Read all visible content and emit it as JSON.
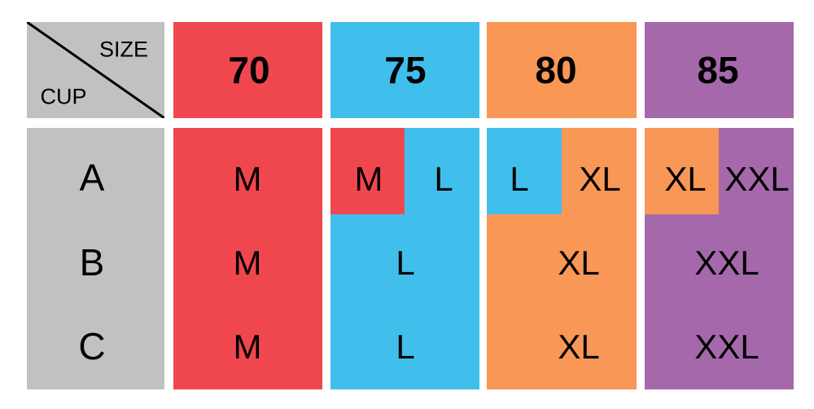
{
  "colors": {
    "gray": "#c1c1c3",
    "red": "#f0474f",
    "blue": "#41bfec",
    "orange": "#f89756",
    "purple": "#a569ab"
  },
  "corner": {
    "size_label": "SIZE",
    "cup_label": "CUP"
  },
  "sizes": [
    "70",
    "75",
    "80",
    "85"
  ],
  "cups": [
    "A",
    "B",
    "C"
  ],
  "cells": {
    "s70": {
      "all": "M"
    },
    "s75": {
      "a_left": "M",
      "a_right": "L",
      "b": "L",
      "c": "L"
    },
    "s80": {
      "a_left": "L",
      "a_right": "XL",
      "b": "XL",
      "c": "XL"
    },
    "s85": {
      "a_left": "XL",
      "a_right": "XXL",
      "b": "XXL",
      "c": "XXL"
    }
  },
  "col70": {
    "a": "M",
    "b": "M",
    "c": "M"
  }
}
